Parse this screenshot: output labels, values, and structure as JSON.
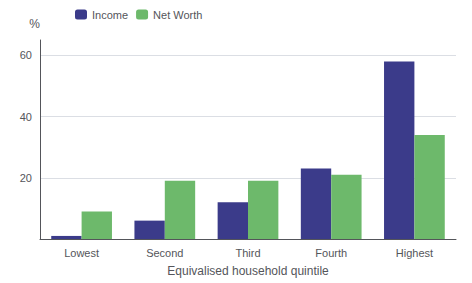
{
  "chart_data": {
    "type": "bar",
    "categories": [
      "Lowest",
      "Second",
      "Third",
      "Fourth",
      "Highest"
    ],
    "series": [
      {
        "name": "Income",
        "color": "#3b3b8a",
        "values": [
          1.0,
          6.0,
          12.0,
          23.0,
          58.0
        ]
      },
      {
        "name": "Net Worth",
        "color": "#6db96b",
        "values": [
          9.0,
          19.0,
          19.0,
          21.0,
          34.0
        ]
      }
    ],
    "xlabel": "Equivalised household quintile",
    "ylabel": "%",
    "ylim": [
      0,
      65
    ],
    "yticks": [
      20,
      40,
      60
    ],
    "grid": true,
    "legend": "upper left"
  }
}
